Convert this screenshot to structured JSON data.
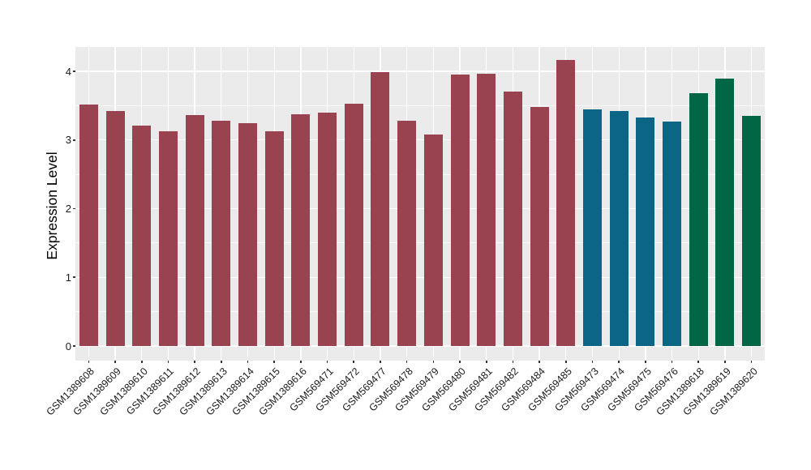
{
  "figure": {
    "background": "#FFFFFF",
    "panel_background": "#EBEBEB",
    "gridline_color": "#FFFFFF",
    "tick_mark_color": "#333333",
    "axis_text_color": "#1A1A1A",
    "palette": {
      "red": "#9A4350",
      "teal": "#0B6685",
      "green": "#006646"
    }
  },
  "chart_data": {
    "type": "bar",
    "title": "",
    "xlabel": "",
    "ylabel": "Expression Level",
    "ylim": [
      0,
      4.35
    ],
    "yticks": [
      0,
      1,
      2,
      3,
      4
    ],
    "ytick_labels": [
      "0",
      "1",
      "2",
      "3",
      "4"
    ],
    "yminor": [
      0.5,
      1.5,
      2.5,
      3.5
    ],
    "grid": "major+minor horizontal, major vertical per category",
    "legend": "none",
    "x_label_rotation_deg": 45,
    "categories": [
      "GSM1389608",
      "GSM1389609",
      "GSM1389610",
      "GSM1389611",
      "GSM1389612",
      "GSM1389613",
      "GSM1389614",
      "GSM1389615",
      "GSM1389616",
      "GSM569471",
      "GSM569472",
      "GSM569477",
      "GSM569478",
      "GSM569479",
      "GSM569480",
      "GSM569481",
      "GSM569482",
      "GSM569484",
      "GSM569485",
      "GSM569473",
      "GSM569474",
      "GSM569475",
      "GSM569476",
      "GSM1389618",
      "GSM1389619",
      "GSM1389620"
    ],
    "values": [
      3.52,
      3.42,
      3.21,
      3.13,
      3.36,
      3.28,
      3.25,
      3.13,
      3.37,
      3.4,
      3.53,
      3.99,
      3.28,
      3.08,
      3.95,
      3.96,
      3.7,
      3.48,
      4.16,
      3.45,
      3.42,
      3.33,
      3.27,
      3.68,
      3.89,
      3.35
    ],
    "bar_colors": [
      "#9A4350",
      "#9A4350",
      "#9A4350",
      "#9A4350",
      "#9A4350",
      "#9A4350",
      "#9A4350",
      "#9A4350",
      "#9A4350",
      "#9A4350",
      "#9A4350",
      "#9A4350",
      "#9A4350",
      "#9A4350",
      "#9A4350",
      "#9A4350",
      "#9A4350",
      "#9A4350",
      "#9A4350",
      "#0B6685",
      "#0B6685",
      "#0B6685",
      "#0B6685",
      "#006646",
      "#006646",
      "#006646"
    ],
    "groups": [
      {
        "color": "#9A4350",
        "count": 19
      },
      {
        "color": "#0B6685",
        "count": 4
      },
      {
        "color": "#006646",
        "count": 3
      }
    ]
  }
}
